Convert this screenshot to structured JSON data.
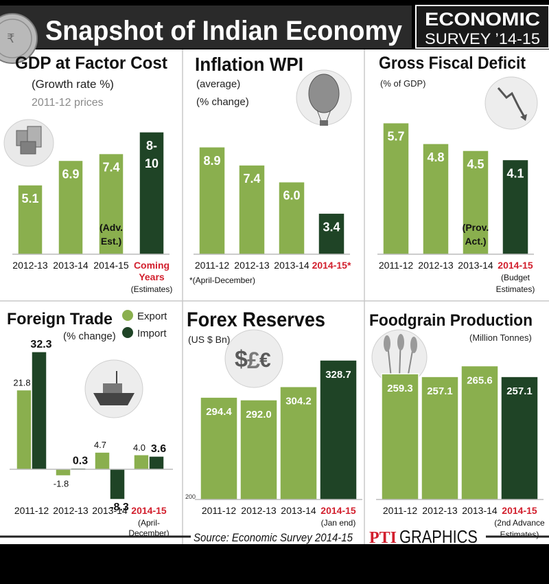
{
  "header": {
    "title": "Snapshot of Indian Economy",
    "badge_line1": "ECONOMIC",
    "badge_line2": "SURVEY ’14-15"
  },
  "footer": {
    "source": "Source: Economic Survey 2014-15",
    "credit_logo": "PTI",
    "credit_text": "GRAPHICS"
  },
  "icons": [
    "coin-icon",
    "cubes-icon",
    "hot-air-balloon-icon",
    "declining-graph-icon",
    "ship-icon",
    "currency-symbols-icon",
    "wheat-icon"
  ],
  "colors": {
    "light_bar": "#8aaf4e",
    "dark_bar": "#1f4426",
    "highlight_text": "#d21f2d",
    "panel_bg": "#ffffff",
    "grid_line": "#cfcfcf"
  },
  "chart_data": [
    {
      "id": "gdp",
      "type": "bar",
      "title": "GDP at Factor Cost",
      "subtitle": "(Growth rate %)",
      "subtitle2": "2011-12 prices",
      "categories": [
        "2012-13",
        "2013-14",
        "2014-15",
        "Coming"
      ],
      "category_notes": [
        "",
        "",
        "",
        "Years"
      ],
      "category_notes2": [
        "",
        "",
        "",
        "(Estimates)"
      ],
      "values": [
        5.1,
        6.9,
        7.4,
        9
      ],
      "value_labels": [
        "5.1",
        "6.9",
        "7.4",
        "8-10"
      ],
      "annotations": [
        "",
        "",
        "(Adv. Est.)",
        ""
      ],
      "highlight_index": 3
    },
    {
      "id": "wpi",
      "type": "bar",
      "title": "Inflation WPI",
      "subtitle": "(average)",
      "subtitle2": "(% change)",
      "categories": [
        "2011-12",
        "2012-13",
        "2013-14",
        "2014-15*"
      ],
      "values": [
        8.9,
        7.4,
        6.0,
        3.4
      ],
      "value_labels": [
        "8.9",
        "7.4",
        "6.0",
        "3.4"
      ],
      "footnote": "*(April-December)",
      "highlight_index": 3
    },
    {
      "id": "fiscal",
      "type": "bar",
      "title": "Gross Fiscal Deficit",
      "subtitle": "(% of GDP)",
      "categories": [
        "2011-12",
        "2012-13",
        "2013-14",
        "2014-15"
      ],
      "category_notes": [
        "",
        "",
        "",
        "(Budget"
      ],
      "category_notes2": [
        "",
        "",
        "",
        "Estimates)"
      ],
      "values": [
        5.7,
        4.8,
        4.5,
        4.1
      ],
      "value_labels": [
        "5.7",
        "4.8",
        "4.5",
        "4.1"
      ],
      "annotations": [
        "",
        "",
        "(Prov. Act.)",
        ""
      ],
      "highlight_index": 3
    },
    {
      "id": "trade",
      "type": "bar",
      "title": "Foreign Trade",
      "subtitle": "(% change)",
      "categories": [
        "2011-12",
        "2012-13",
        "2013-14",
        "2014-15"
      ],
      "category_notes": [
        "",
        "",
        "",
        "(April-"
      ],
      "category_notes2": [
        "",
        "",
        "",
        "December)"
      ],
      "series": [
        {
          "name": "Export",
          "values": [
            21.8,
            -1.8,
            4.7,
            4.0
          ],
          "labels": [
            "21.8",
            "-1.8",
            "4.7",
            "4.0"
          ]
        },
        {
          "name": "Import",
          "values": [
            32.3,
            0.3,
            -8.3,
            3.6
          ],
          "labels": [
            "32.3",
            "0.3",
            "-8.3",
            "3.6"
          ]
        }
      ],
      "highlight_index": 3
    },
    {
      "id": "forex",
      "type": "bar",
      "title": "Forex Reserves",
      "subtitle": "(US $ Bn)",
      "categories": [
        "2011-12",
        "2012-13",
        "2013-14",
        "2014-15"
      ],
      "category_notes": [
        "",
        "",
        "",
        "(Jan end)"
      ],
      "values": [
        294.4,
        292.0,
        304.2,
        328.7
      ],
      "value_labels": [
        "294.4",
        "292.0",
        "304.2",
        "328.7"
      ],
      "axis_min_label": "200",
      "ylim": [
        200,
        330
      ],
      "highlight_index": 3
    },
    {
      "id": "food",
      "type": "bar",
      "title": "Foodgrain Production",
      "subtitle": "(Million Tonnes)",
      "categories": [
        "2011-12",
        "2012-13",
        "2013-14",
        "2014-15"
      ],
      "category_notes": [
        "",
        "",
        "",
        "(2nd Advance"
      ],
      "category_notes2": [
        "",
        "",
        "",
        "Estimates)"
      ],
      "values": [
        259.3,
        257.1,
        265.6,
        257.1
      ],
      "value_labels": [
        "259.3",
        "257.1",
        "265.6",
        "257.1"
      ],
      "highlight_index": 3
    }
  ]
}
